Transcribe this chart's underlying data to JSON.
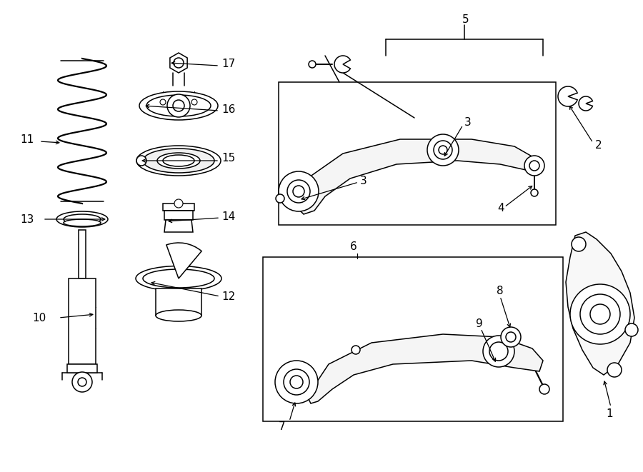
{
  "bg_color": "#ffffff",
  "line_color": "#000000",
  "fig_width": 9.0,
  "fig_height": 6.61,
  "dpi": 100,
  "lw": 1.1
}
